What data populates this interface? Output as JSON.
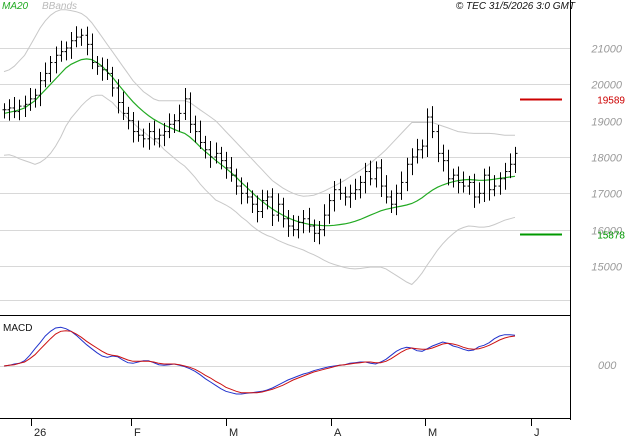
{
  "header": {
    "ma_label": "MA20",
    "bb_label": "BBands",
    "copyright": "© TEC 31/5/2026 3:0 GMT"
  },
  "macd_label": "MACD",
  "colors": {
    "ma": "#22aa22",
    "bands": "#c8c8c8",
    "resistance": "#cc0000",
    "support": "#009900",
    "macd": "#2233cc",
    "signal": "#cc1111",
    "grid": "#d8d8d8",
    "bars": "#000000"
  },
  "chart_data": {
    "type": "ohlc",
    "price_axis": {
      "ylim": [
        14000,
        22100
      ],
      "ticks": [
        15000,
        16000,
        17000,
        18000,
        19000,
        20000,
        21000
      ],
      "labels": [
        "15000",
        "16000",
        "17000",
        "18000",
        "19000",
        "20000",
        "21000"
      ]
    },
    "x_labels": [
      "26",
      "F",
      "M",
      "A",
      "M",
      "J"
    ],
    "levels": [
      {
        "name": "resistance",
        "value": 19589,
        "label": "19589"
      },
      {
        "name": "support",
        "value": 15878,
        "label": "15878"
      }
    ],
    "close": [
      19300,
      19350,
      19250,
      19400,
      19450,
      19600,
      19700,
      20100,
      20300,
      20600,
      20800,
      20900,
      21000,
      21200,
      21300,
      21350,
      21100,
      20600,
      20500,
      20400,
      20300,
      19900,
      19500,
      19200,
      19000,
      18700,
      18600,
      18500,
      18700,
      18500,
      18600,
      18700,
      18900,
      19000,
      19200,
      19600,
      18900,
      18700,
      18400,
      18200,
      18000,
      18100,
      17900,
      17700,
      17500,
      17200,
      17000,
      16900,
      16700,
      16500,
      16800,
      16900,
      16400,
      16700,
      16300,
      16100,
      16000,
      16200,
      16300,
      16100,
      15900,
      16000,
      16400,
      16800,
      17100,
      17000,
      16900,
      17000,
      17100,
      17300,
      17600,
      17400,
      17700,
      17200,
      16900,
      16700,
      17000,
      17300,
      17800,
      18000,
      18200,
      18300,
      19100,
      18700,
      18100,
      17900,
      17400,
      17500,
      17300,
      17200,
      17300,
      16900,
      17000,
      17500,
      17100,
      17200,
      17400,
      17600,
      17800,
      18100
    ],
    "ma20": [
      19200,
      19230,
      19260,
      19300,
      19350,
      19450,
      19550,
      19700,
      19850,
      20000,
      20150,
      20300,
      20450,
      20550,
      20620,
      20680,
      20700,
      20680,
      20600,
      20500,
      20350,
      20200,
      20020,
      19850,
      19680,
      19520,
      19380,
      19250,
      19140,
      19040,
      18960,
      18880,
      18820,
      18760,
      18700,
      18650,
      18550,
      18420,
      18280,
      18150,
      18030,
      17910,
      17800,
      17690,
      17570,
      17440,
      17300,
      17170,
      17030,
      16900,
      16780,
      16670,
      16570,
      16480,
      16400,
      16330,
      16270,
      16220,
      16180,
      16150,
      16130,
      16120,
      16110,
      16110,
      16120,
      16140,
      16160,
      16190,
      16230,
      16280,
      16340,
      16400,
      16460,
      16520,
      16560,
      16590,
      16620,
      16650,
      16680,
      16720,
      16790,
      16880,
      16990,
      17090,
      17170,
      17230,
      17280,
      17320,
      17350,
      17370,
      17380,
      17370,
      17360,
      17360,
      17370,
      17390,
      17410,
      17430,
      17450,
      17470
    ],
    "bb_upper": [
      20350,
      20400,
      20500,
      20650,
      20800,
      21050,
      21300,
      21550,
      21750,
      21900,
      22000,
      22050,
      22050,
      22030,
      22000,
      21950,
      21850,
      21700,
      21500,
      21300,
      21100,
      20900,
      20700,
      20500,
      20300,
      20100,
      19950,
      19800,
      19700,
      19600,
      19550,
      19550,
      19550,
      19550,
      19550,
      19550,
      19500,
      19400,
      19300,
      19200,
      19100,
      19000,
      18850,
      18700,
      18550,
      18400,
      18250,
      18100,
      17950,
      17800,
      17650,
      17500,
      17350,
      17250,
      17150,
      17070,
      17000,
      16950,
      16920,
      16930,
      16950,
      17000,
      17060,
      17130,
      17200,
      17280,
      17360,
      17450,
      17540,
      17630,
      17730,
      17830,
      17950,
      18070,
      18200,
      18350,
      18500,
      18650,
      18800,
      18950,
      18950,
      18950,
      18950,
      18950,
      18900,
      18850,
      18800,
      18750,
      18700,
      18680,
      18660,
      18650,
      18650,
      18650,
      18650,
      18640,
      18620,
      18600,
      18600,
      18600
    ],
    "bb_lower": [
      18050,
      18060,
      18020,
      17950,
      17900,
      17850,
      17800,
      17850,
      17950,
      18100,
      18300,
      18550,
      18850,
      19070,
      19240,
      19410,
      19550,
      19660,
      19700,
      19700,
      19600,
      19500,
      19340,
      19200,
      19060,
      18940,
      18810,
      18700,
      18580,
      18480,
      18370,
      18210,
      18090,
      17970,
      17850,
      17750,
      17600,
      17440,
      17260,
      17100,
      16960,
      16820,
      16750,
      16680,
      16590,
      16480,
      16350,
      16240,
      16110,
      16000,
      15910,
      15840,
      15790,
      15710,
      15650,
      15590,
      15540,
      15490,
      15440,
      15370,
      15310,
      15240,
      15160,
      15090,
      15040,
      15000,
      14960,
      14930,
      14920,
      14930,
      14950,
      14970,
      14970,
      14970,
      14920,
      14830,
      14740,
      14650,
      14560,
      14490,
      14630,
      14810,
      15030,
      15230,
      15440,
      15610,
      15760,
      15890,
      16000,
      16060,
      16100,
      16090,
      16070,
      16070,
      16090,
      16140,
      16200,
      16260,
      16300,
      16340
    ],
    "macd_series": [
      {
        "name": "macd",
        "values": [
          0,
          1,
          3,
          4,
          8,
          16,
          26,
          35,
          45,
          52,
          57,
          58,
          56,
          52,
          46,
          39,
          32,
          26,
          20,
          15,
          13,
          15,
          14,
          9,
          5,
          4,
          6,
          8,
          8,
          5,
          2,
          1,
          2,
          3,
          1,
          -1,
          -4,
          -8,
          -13,
          -19,
          -24,
          -29,
          -34,
          -38,
          -40,
          -42,
          -42,
          -41,
          -40,
          -39,
          -38,
          -36,
          -33,
          -29,
          -25,
          -21,
          -18,
          -15,
          -12,
          -10,
          -7,
          -5,
          -3,
          -1,
          0,
          1,
          2,
          4,
          5,
          6,
          6,
          4,
          3,
          6,
          10,
          16,
          22,
          26,
          28,
          27,
          23,
          22,
          26,
          30,
          33,
          36,
          34,
          30,
          28,
          25,
          23,
          24,
          29,
          31,
          35,
          41,
          45,
          47,
          47,
          46
        ]
      },
      {
        "name": "signal",
        "values": [
          0,
          1,
          2,
          4,
          6,
          11,
          17,
          25,
          33,
          41,
          48,
          52,
          53,
          52,
          48,
          43,
          37,
          32,
          27,
          22,
          18,
          16,
          15,
          12,
          9,
          7,
          7,
          7,
          7,
          6,
          4,
          3,
          3,
          3,
          2,
          0,
          -2,
          -5,
          -9,
          -14,
          -18,
          -23,
          -27,
          -32,
          -35,
          -38,
          -40,
          -40,
          -40,
          -40,
          -39,
          -37,
          -35,
          -32,
          -29,
          -25,
          -21,
          -18,
          -15,
          -12,
          -9,
          -7,
          -5,
          -3,
          -1,
          1,
          2,
          3,
          4,
          5,
          6,
          6,
          5,
          5,
          7,
          11,
          16,
          21,
          25,
          27,
          26,
          25,
          25,
          27,
          30,
          33,
          34,
          33,
          31,
          28,
          26,
          25,
          26,
          28,
          31,
          35,
          39,
          42,
          44,
          45
        ]
      }
    ]
  }
}
